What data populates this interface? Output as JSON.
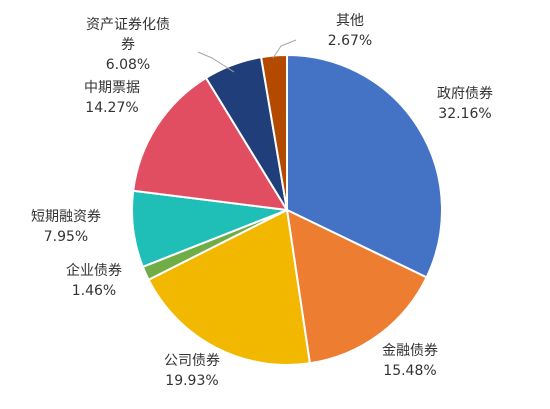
{
  "chart_data": {
    "type": "pie",
    "title": "",
    "legend": "none",
    "categories": [
      "政府债券",
      "金融债券",
      "公司债券",
      "企业债券",
      "短期融资券",
      "中期票据",
      "资产证券化债券",
      "其他"
    ],
    "values": [
      32.16,
      15.48,
      19.93,
      1.46,
      7.95,
      14.27,
      6.08,
      2.67
    ],
    "value_labels": [
      "32.16%",
      "15.48%",
      "19.93%",
      "1.46%",
      "7.95%",
      "14.27%",
      "6.08%",
      "2.67%"
    ],
    "colors": [
      "#4472C4",
      "#ED7D31",
      "#F2B800",
      "#70AD47",
      "#1FBFB8",
      "#E24E61",
      "#1F3E7A",
      "#B34A00"
    ]
  }
}
